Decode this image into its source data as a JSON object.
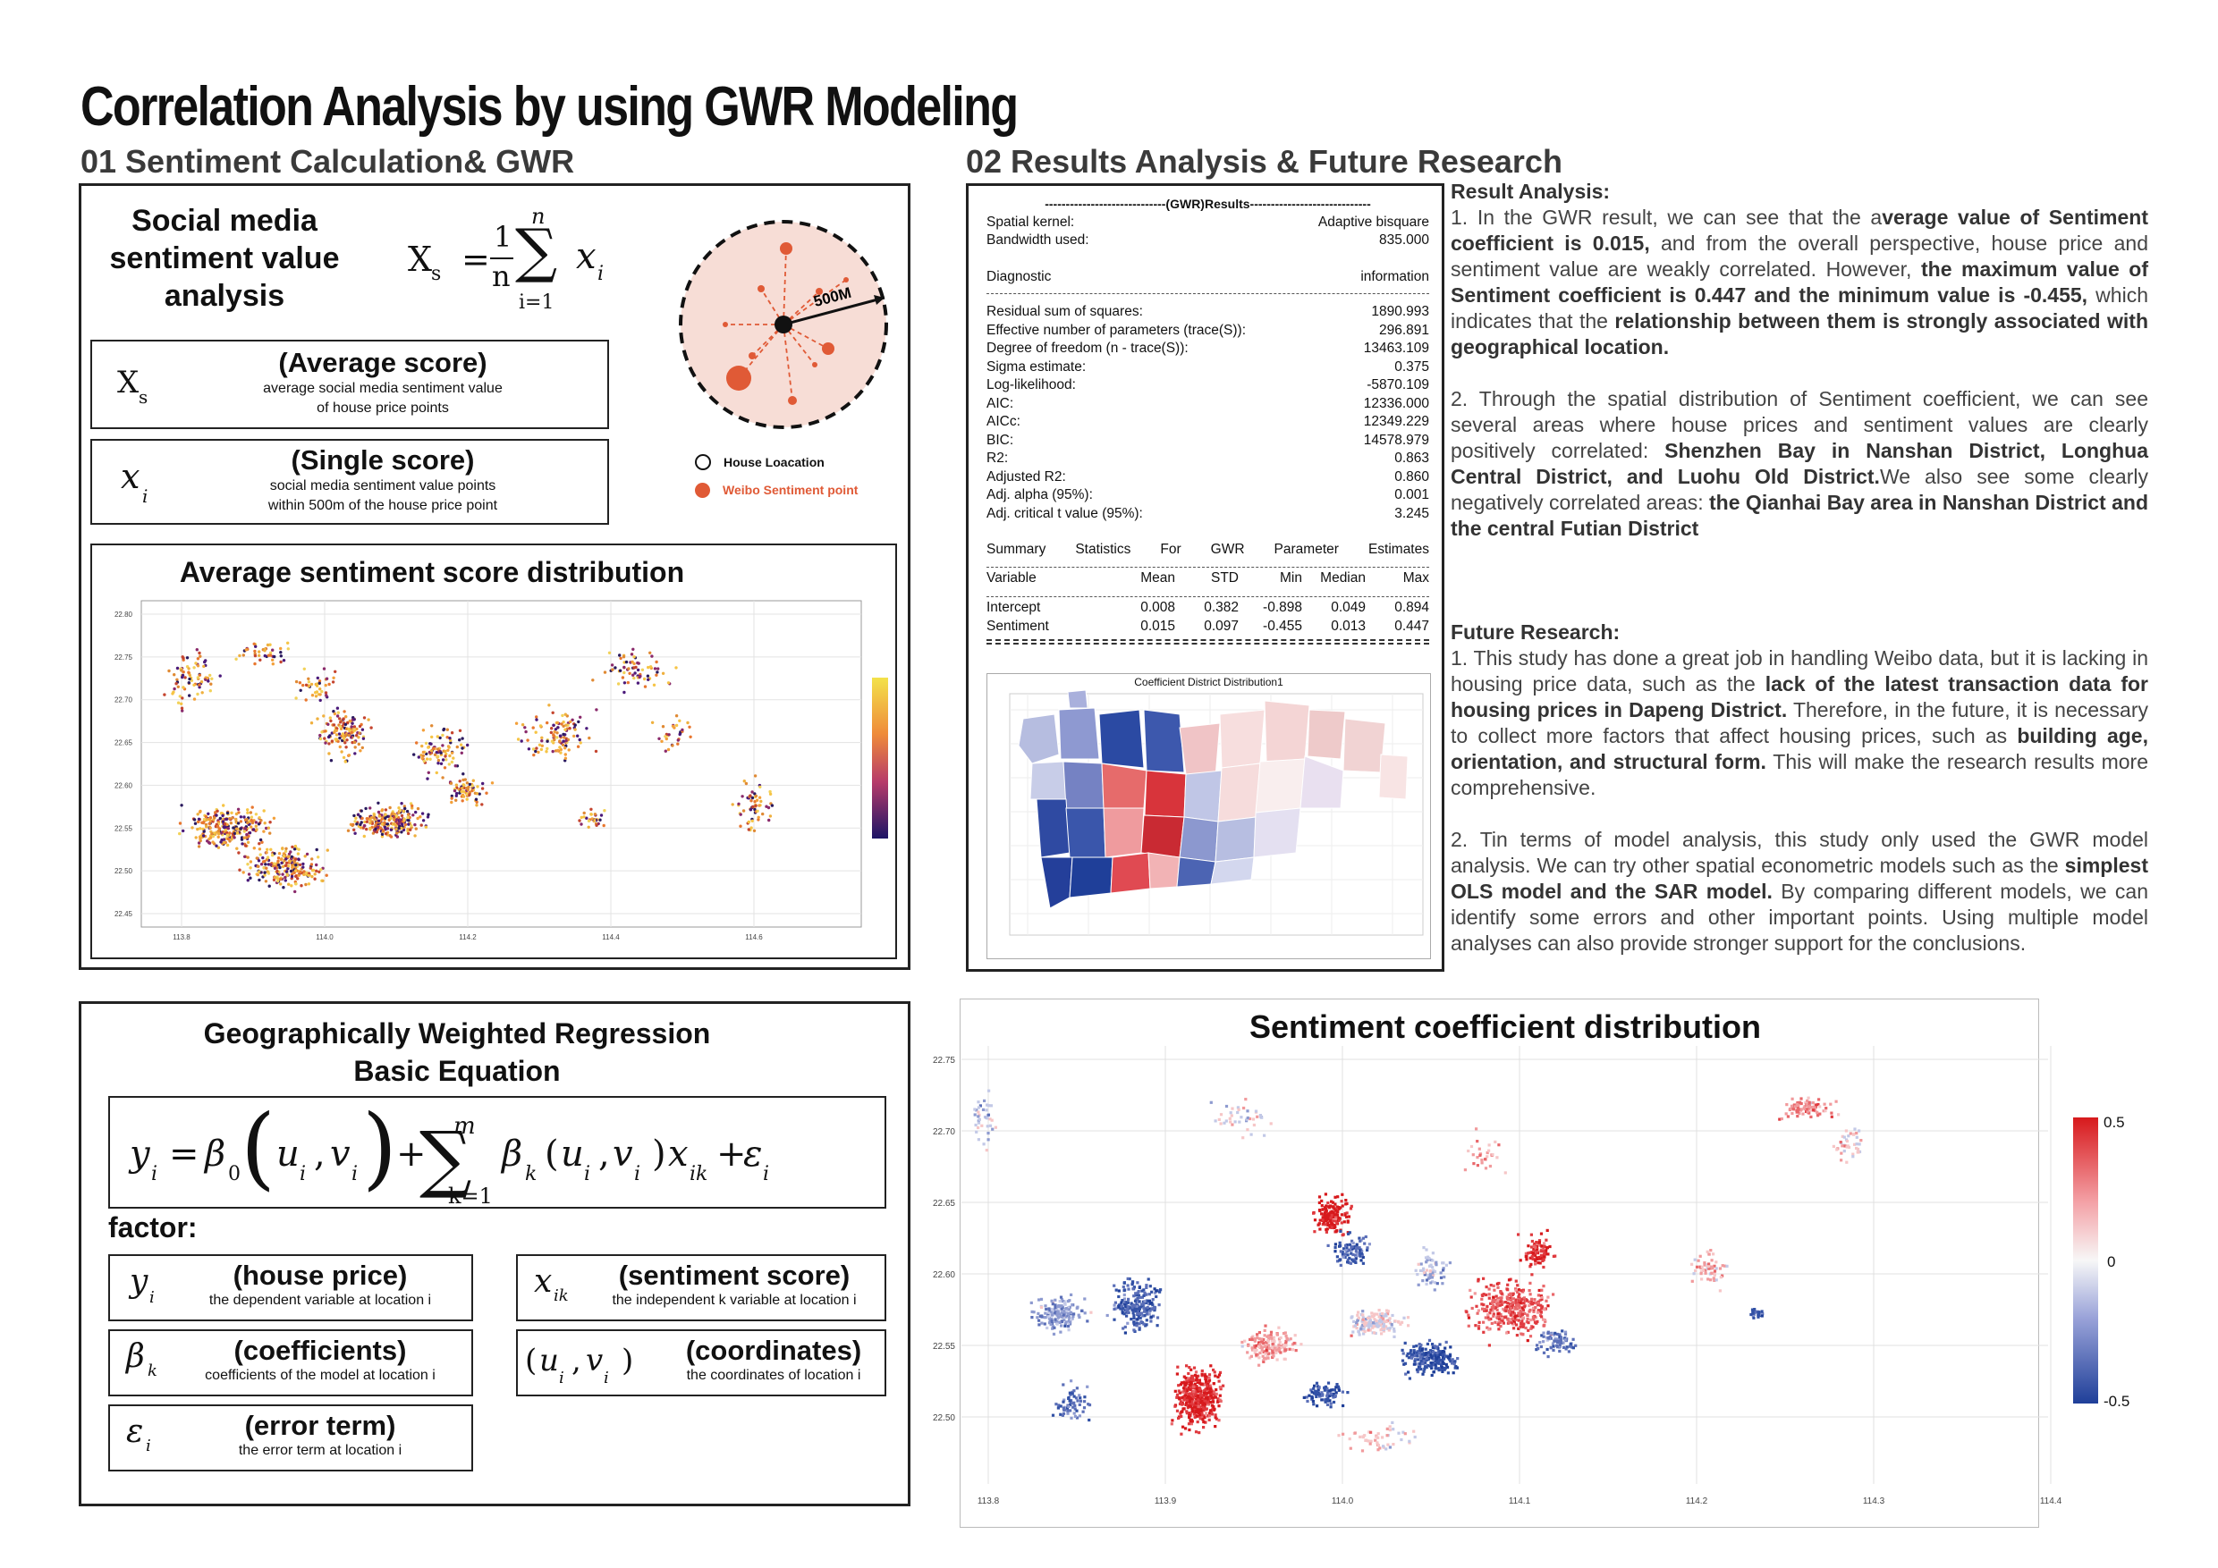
{
  "title": "Correlation Analysis by using GWR Modeling",
  "section1": {
    "title": "01 Sentiment Calculation& GWR",
    "heading": [
      "Social media",
      "sentiment value",
      "analysis"
    ],
    "formula": {
      "lhs": "X",
      "lhs_sub": "s",
      "eq": "=",
      "num": "1",
      "den": "n",
      "upper": "n",
      "lower": "i=1",
      "term": "x",
      "term_sub": "i"
    },
    "avg_box": {
      "symbol": "X",
      "symbol_sub": "s",
      "title": "(Average score)",
      "desc1": "average social media sentiment  value",
      "desc2": "of house price points"
    },
    "single_box": {
      "symbol": "x",
      "symbol_sub": "i",
      "title": "(Single score)",
      "desc1": "social media sentiment value points",
      "desc2": "within 500m of the house price point"
    },
    "buffer": {
      "radius_label": "500M",
      "legend_house": "House Loacation",
      "legend_weibo": "Weibo Sentiment point"
    },
    "map_title": "Average sentiment score distribution",
    "map_y_ticks": [
      "22.80",
      "22.75",
      "22.70",
      "22.65",
      "22.60",
      "22.55",
      "22.50",
      "22.45"
    ],
    "map_x_ticks": [
      "113.8",
      "114.0",
      "114.2",
      "114.4",
      "114.6"
    ]
  },
  "equation": {
    "title1": "Geographically Weighted Regression",
    "title2": "Basic Equation",
    "factor_label": "factor:",
    "factors": {
      "y": {
        "symbol": "y",
        "sub": "i",
        "title": "(house price)",
        "desc": "the dependent variable at location  i"
      },
      "x": {
        "symbol": "x",
        "sub": "ik",
        "title": "(sentiment score)",
        "desc": "the independent k variable at location i"
      },
      "beta": {
        "symbol": "β",
        "sub": "k",
        "title": "(coefficients)",
        "desc": "coefficients of the model at location i"
      },
      "uv": {
        "symbol": "(u",
        "sub": "i",
        "title": "(coordinates)",
        "desc": "the coordinates of location i"
      },
      "eps": {
        "symbol": "ε",
        "sub": "i",
        "title": "(error term)",
        "desc": "the error term at location i"
      }
    }
  },
  "section2": {
    "title": "02 Results Analysis & Future Research",
    "gwr_header": "-----------------------------(GWR)Results-----------------------------",
    "kernel": [
      [
        "Spatial kernel:",
        "Adaptive bisquare"
      ],
      [
        "Bandwidth used:",
        "835.000"
      ]
    ],
    "diagnostic": [
      "Diagnostic",
      "information"
    ],
    "diagnostics": [
      [
        "Residual sum of squares:",
        "1890.993"
      ],
      [
        "Effective number of parameters (trace(S)):",
        "296.891"
      ],
      [
        "Degree of freedom (n - trace(S)):",
        "13463.109"
      ],
      [
        "Sigma estimate:",
        "0.375"
      ],
      [
        "Log-likelihood:",
        "-5870.109"
      ],
      [
        "AIC:",
        "12336.000"
      ],
      [
        "AICc:",
        "12349.229"
      ],
      [
        "BIC:",
        "14578.979"
      ],
      [
        "R2:",
        "0.863"
      ],
      [
        "Adjusted R2:",
        "0.860"
      ],
      [
        "Adj. alpha (95%):",
        "0.001"
      ],
      [
        "Adj. critical t value (95%):",
        "3.245"
      ]
    ],
    "summary_words": [
      "Summary",
      "Statistics",
      "For",
      "GWR",
      "Parameter",
      "Estimates"
    ],
    "table_header": [
      "Variable",
      "Mean",
      "STD",
      "Min",
      "Median",
      "Max"
    ],
    "table_rows": [
      [
        "Intercept",
        "0.008",
        "0.382",
        "-0.898",
        "0.049",
        "0.894"
      ],
      [
        "Sentiment",
        "0.015",
        "0.097",
        "-0.455",
        "0.013",
        "0.447"
      ]
    ],
    "district_map_title": "Coefficient District Distribution1",
    "analysis": {
      "result_title": "Result Analysis:",
      "p1": [
        "1. In the GWR result, we can see that the a",
        "verage value of Sentiment coefficient is 0.015,",
        " and from the overall perspective, house price and sentiment value are weakly correlated. However, ",
        "the maximum value of Sentiment coefficient is 0.447 and the minimum value is -0.455,",
        " which indicates that the ",
        "relationship between them is strongly associated with geographical location."
      ],
      "p2": [
        "2. Through the spatial distribution of Sentiment coefficient, we can see several areas where house prices and sentiment values are clearly positively correlated: ",
        "Shenzhen Bay in Nanshan District, Longhua Central District, and Luohu Old District.",
        "We also see some clearly negatively correlated areas: ",
        "the Qianhai Bay area in Nanshan District and the central Futian District"
      ],
      "future_title": "Future Research:",
      "p3": [
        "1. This study has done a great job in handling Weibo data, but it is lacking in housing price data, such as the ",
        "lack of the latest transaction data for housing prices in Dapeng District.",
        " Therefore, in the future, it is necessary to collect more factors that affect housing prices, such as ",
        "building age, orientation, and structural form.",
        " This will make the research results more comprehensive."
      ],
      "p4": [
        "2. Tin terms of model analysis, this study only used the GWR model analysis. We can try other spatial econometric models such as the ",
        "simplest OLS model and the SAR model.",
        " By comparing different models, we can identify some errors and other important points. Using multiple model analyses can also provide stronger support for the conclusions."
      ]
    },
    "coef_map": {
      "title": "Sentiment coefficient distribution",
      "y_ticks": [
        "22.75",
        "22.70",
        "22.65",
        "22.60",
        "22.55",
        "22.50"
      ],
      "x_ticks": [
        "113.8",
        "113.9",
        "114.0",
        "114.1",
        "114.2",
        "114.3",
        "114.4"
      ],
      "colorbar": [
        "0.5",
        "0",
        "-0.5"
      ]
    }
  },
  "colors": {
    "red": "#d7301f",
    "blue": "#1f3f99",
    "orange": "#e8a33a",
    "buffer_fill": "#f7ddd6",
    "weibo": "#e05a36"
  }
}
